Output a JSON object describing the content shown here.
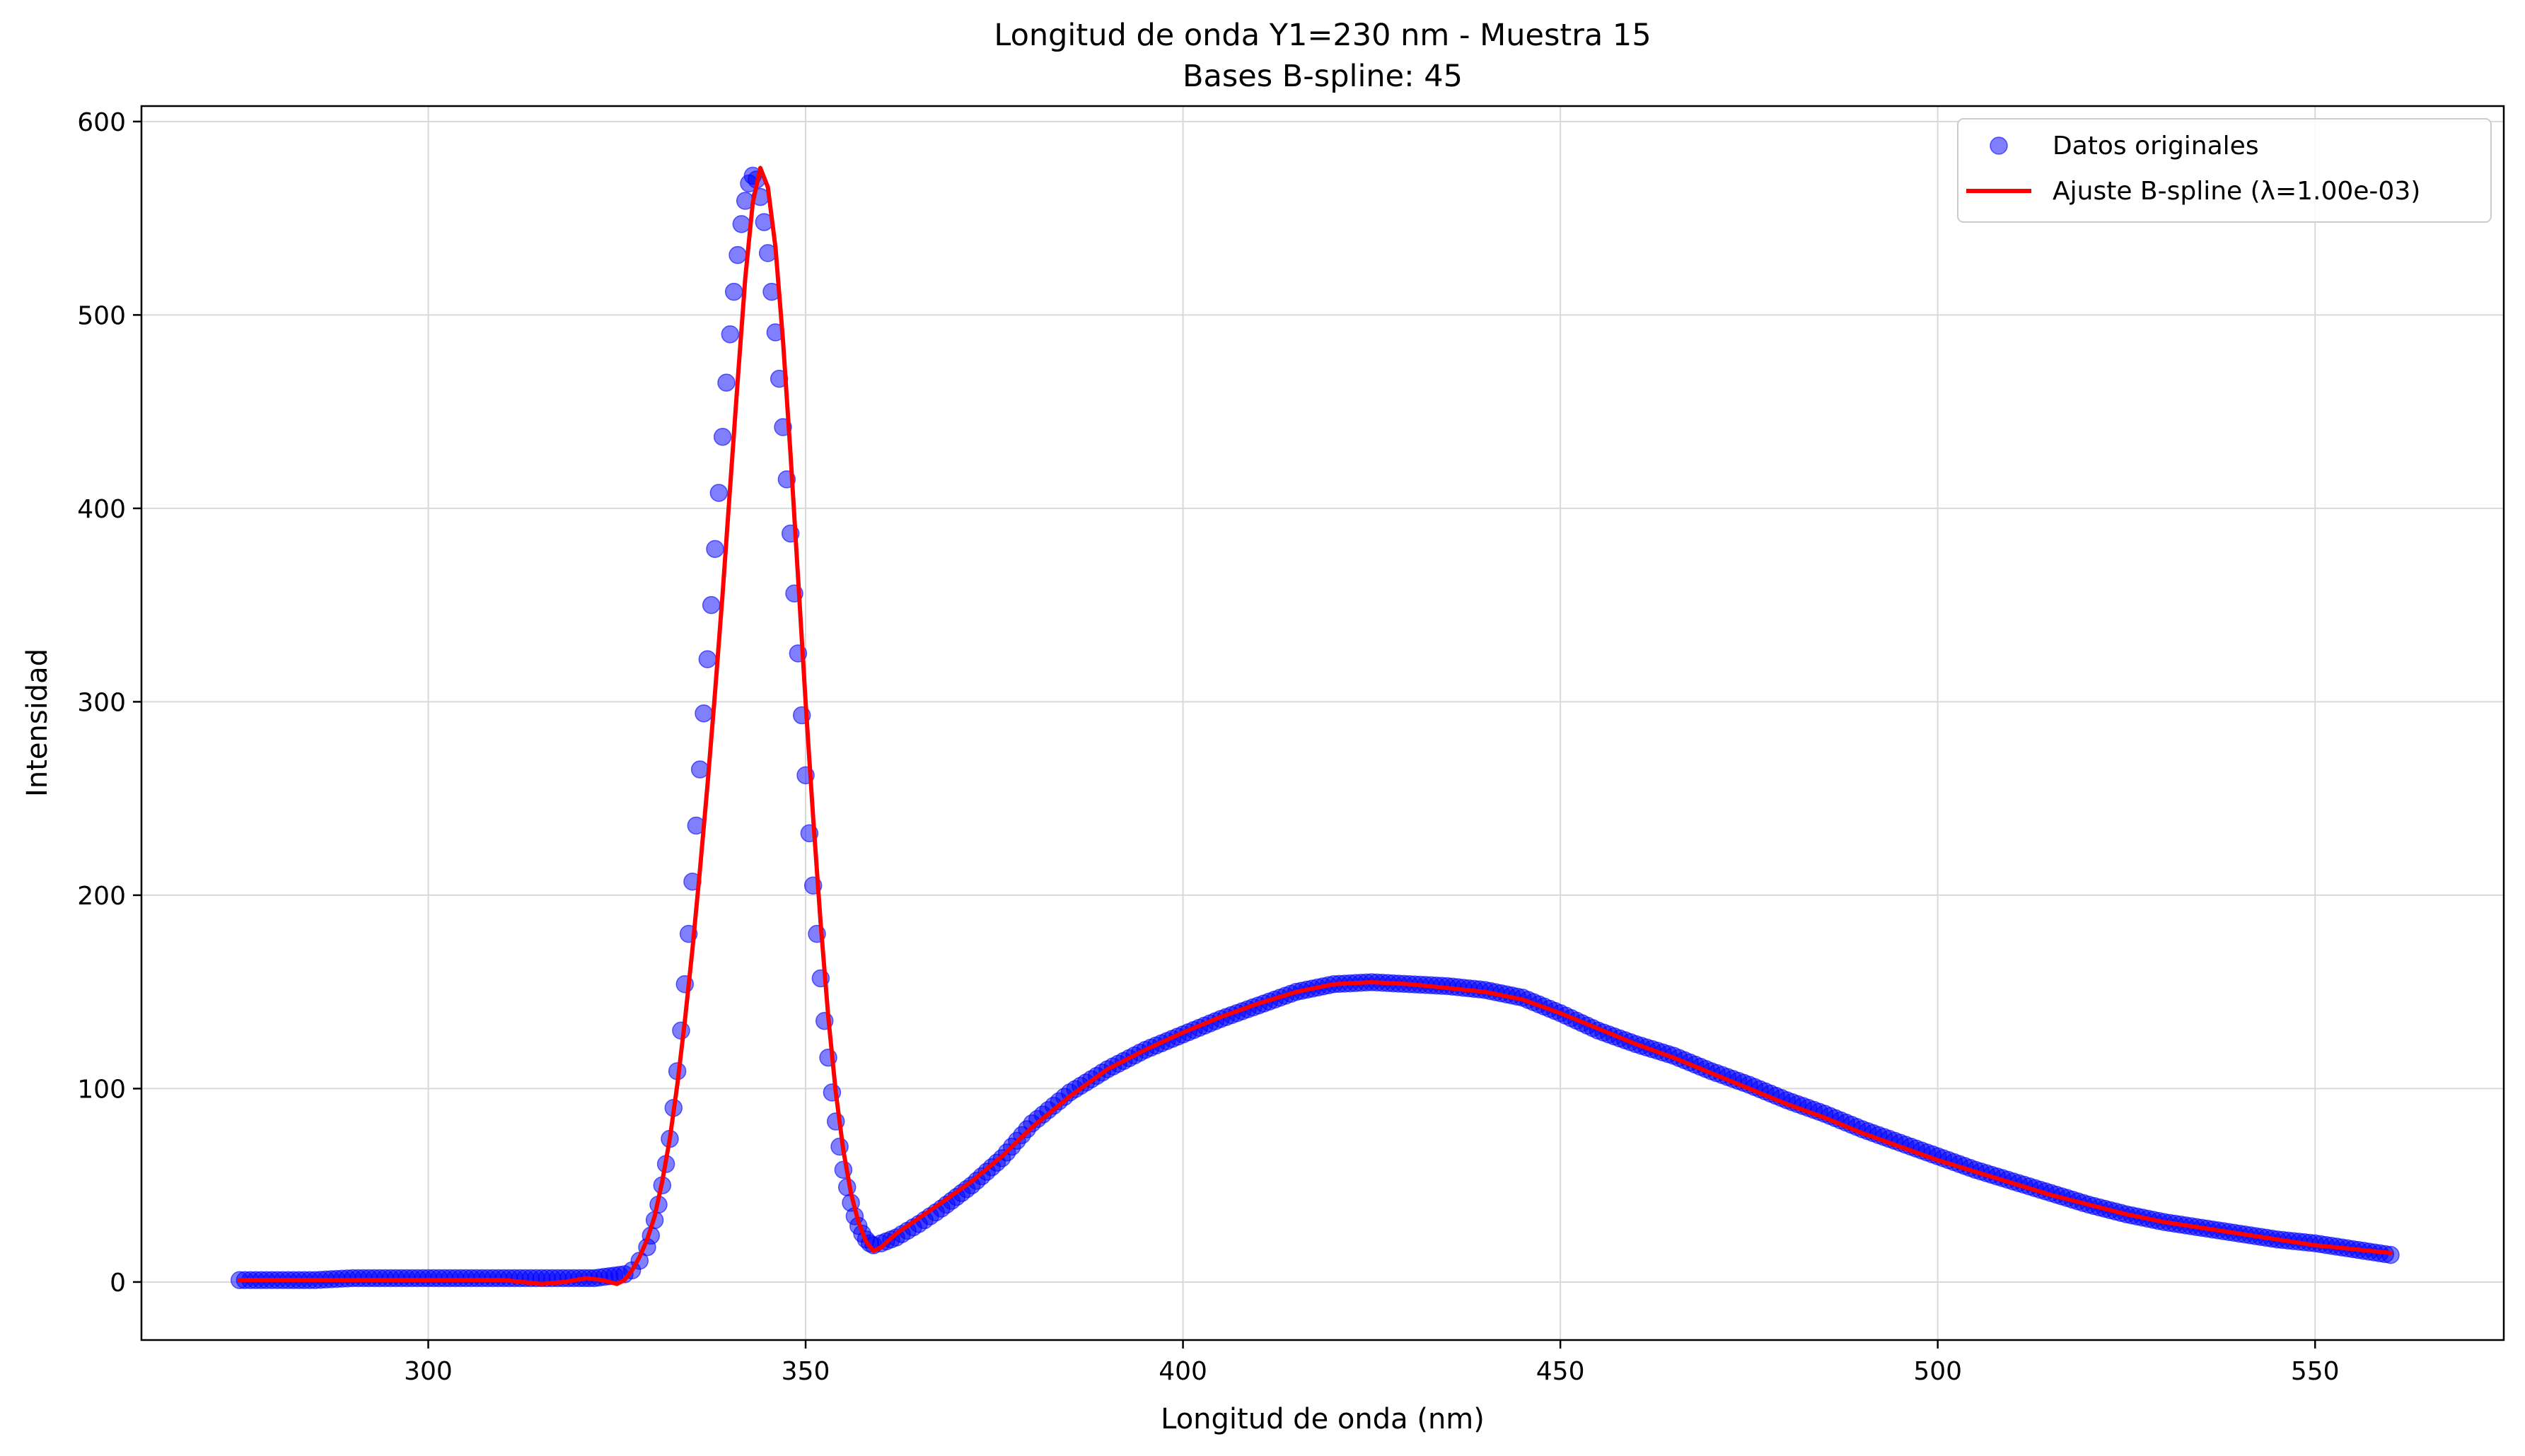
{
  "chart_data": {
    "type": "scatter",
    "title": "Longitud de onda Y1=230 nm - Muestra 15",
    "subtitle": "Bases B-spline: 45",
    "xlabel": "Longitud de onda (nm)",
    "ylabel": "Intensidad",
    "xlim": [
      262,
      575
    ],
    "ylim": [
      -30,
      608
    ],
    "x_ticks": [
      300,
      350,
      400,
      450,
      500,
      550
    ],
    "y_ticks": [
      0,
      100,
      200,
      300,
      400,
      500,
      600
    ],
    "grid": true,
    "legend_position": "top-right",
    "colors": {
      "scatter": "#0000ff",
      "fit": "#ff0000",
      "grid": "#d9d9d9",
      "axes": "#000000"
    },
    "series": [
      {
        "name": "Datos originales",
        "kind": "scatter",
        "x": [
          275,
          280,
          285,
          290,
          295,
          300,
          305,
          310,
          315,
          320,
          322,
          324,
          326,
          327,
          328,
          329,
          329.5,
          330,
          330.5,
          331,
          331.5,
          332,
          332.5,
          333,
          333.5,
          334,
          334.5,
          335,
          335.5,
          336,
          336.5,
          337,
          337.5,
          338,
          338.5,
          339,
          339.5,
          340,
          340.5,
          341,
          341.5,
          342,
          342.5,
          343,
          343.5,
          344,
          344.5,
          345,
          345.5,
          346,
          346.5,
          347,
          347.5,
          348,
          348.5,
          349,
          349.5,
          350,
          350.5,
          351,
          351.5,
          352,
          352.5,
          353,
          353.5,
          354,
          354.5,
          355,
          355.5,
          356,
          356.5,
          357,
          357.5,
          358,
          358.5,
          359,
          360,
          362,
          365,
          368,
          372,
          376,
          380,
          385,
          390,
          395,
          400,
          405,
          410,
          415,
          420,
          425,
          430,
          435,
          440,
          445,
          450,
          455,
          460,
          465,
          470,
          475,
          480,
          485,
          490,
          495,
          500,
          505,
          510,
          515,
          520,
          525,
          530,
          535,
          540,
          545,
          550,
          555,
          560
        ],
        "y": [
          1,
          1,
          1,
          2,
          2,
          2,
          2,
          2,
          2,
          2,
          2,
          3,
          4,
          6,
          11,
          18,
          24,
          32,
          40,
          50,
          61,
          74,
          90,
          109,
          130,
          154,
          180,
          207,
          236,
          265,
          294,
          322,
          350,
          379,
          408,
          437,
          465,
          490,
          512,
          531,
          547,
          559,
          568,
          572,
          570,
          561,
          548,
          532,
          512,
          491,
          467,
          442,
          415,
          387,
          356,
          325,
          293,
          262,
          232,
          205,
          180,
          157,
          135,
          116,
          98,
          83,
          70,
          58,
          49,
          41,
          34,
          29,
          25,
          22,
          20,
          19,
          20,
          23,
          30,
          38,
          50,
          64,
          82,
          98,
          110,
          120,
          128,
          136,
          143,
          150,
          154,
          155,
          154,
          153,
          151,
          147,
          139,
          130,
          123,
          117,
          109,
          102,
          94,
          87,
          79,
          72,
          65,
          58,
          52,
          46,
          40,
          35,
          31,
          28,
          25,
          22,
          20,
          17,
          14
        ]
      },
      {
        "name": "Ajuste B-spline (λ=1.00e-03)",
        "kind": "line",
        "x": [
          275,
          285,
          295,
          305,
          310,
          315,
          318,
          321,
          323,
          325,
          326,
          327,
          328,
          329,
          330,
          331,
          332,
          333,
          334,
          335,
          336,
          337,
          338,
          339,
          340,
          341,
          342,
          343,
          344,
          345,
          346,
          347,
          348,
          349,
          350,
          351,
          352,
          353,
          354,
          355,
          356,
          357,
          358,
          359,
          360,
          362,
          365,
          368,
          372,
          376,
          380,
          385,
          390,
          395,
          400,
          405,
          410,
          415,
          420,
          425,
          430,
          435,
          440,
          445,
          450,
          455,
          460,
          465,
          470,
          475,
          480,
          485,
          490,
          495,
          500,
          505,
          510,
          515,
          520,
          525,
          530,
          535,
          540,
          545,
          550,
          555,
          560
        ],
        "y": [
          1,
          1,
          1,
          1,
          1,
          -1,
          0,
          2,
          1,
          -1,
          1,
          6,
          13,
          22,
          34,
          52,
          74,
          102,
          135,
          172,
          213,
          257,
          305,
          356,
          411,
          466,
          519,
          558,
          576,
          566,
          535,
          487,
          428,
          364,
          300,
          240,
          185,
          137,
          98,
          68,
          46,
          31,
          21,
          16,
          18,
          25,
          33,
          41,
          52,
          65,
          80,
          96,
          110,
          120,
          129,
          137,
          144,
          150,
          154,
          155,
          154,
          152,
          150,
          146,
          139,
          131,
          123,
          116,
          108,
          100,
          92,
          85,
          77,
          70,
          63,
          57,
          51,
          45,
          40,
          35,
          31,
          28,
          25,
          22,
          19,
          17,
          15
        ]
      }
    ]
  }
}
